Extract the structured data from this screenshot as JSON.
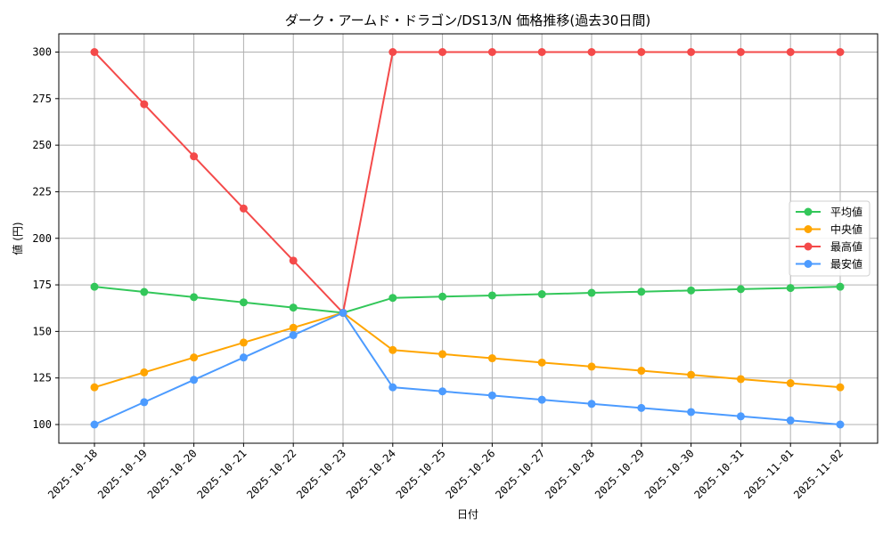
{
  "chart_data": {
    "type": "line",
    "title": "ダーク・アームド・ドラゴン/DS13/N 価格推移(過去30日間)",
    "xlabel": "日付",
    "ylabel": "値 (円)",
    "ylim": [
      90,
      310
    ],
    "yticks": [
      100,
      125,
      150,
      175,
      200,
      225,
      250,
      275,
      300
    ],
    "grid": true,
    "legend_position": "center right",
    "categories": [
      "2025-10-18",
      "2025-10-19",
      "2025-10-20",
      "2025-10-21",
      "2025-10-22",
      "2025-10-23",
      "2025-10-24",
      "2025-10-25",
      "2025-10-26",
      "2025-10-27",
      "2025-10-28",
      "2025-10-29",
      "2025-10-30",
      "2025-10-31",
      "2025-11-01",
      "2025-11-02"
    ],
    "series": [
      {
        "name": "平均値",
        "color": "#33c75a",
        "values": [
          174,
          171.2,
          168.4,
          165.6,
          162.8,
          160,
          168,
          168.7,
          169.3,
          170,
          170.7,
          171.3,
          172,
          172.7,
          173.3,
          174
        ]
      },
      {
        "name": "中央値",
        "color": "#ffa500",
        "values": [
          120,
          128,
          136,
          144,
          152,
          160,
          140,
          137.8,
          135.6,
          133.3,
          131.1,
          128.9,
          126.7,
          124.4,
          122.2,
          120
        ]
      },
      {
        "name": "最高値",
        "color": "#f44a4a",
        "values": [
          300,
          272,
          244,
          216,
          188,
          160,
          300,
          300,
          300,
          300,
          300,
          300,
          300,
          300,
          300,
          300
        ]
      },
      {
        "name": "最安値",
        "color": "#4c9bff",
        "values": [
          100,
          112,
          124,
          136,
          148,
          160,
          120,
          117.8,
          115.6,
          113.3,
          111.1,
          108.9,
          106.7,
          104.4,
          102.2,
          100
        ]
      }
    ]
  }
}
